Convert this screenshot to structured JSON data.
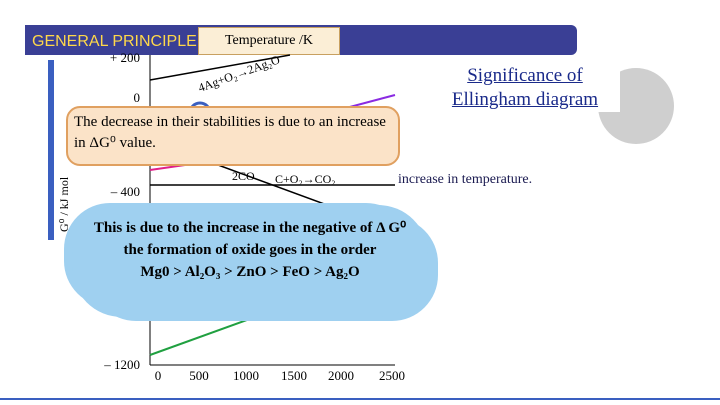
{
  "header": {
    "title": "GENERAL PRINCIPLE"
  },
  "diagram": {
    "x_axis_label": "Temperature /K",
    "y_axis_label": "G⁰ / kJ mol",
    "y_tick_labels": [
      "+ 200",
      "0",
      "– 400",
      "– 1200"
    ],
    "x_tick_labels": [
      "0",
      "500",
      "1000",
      "1500",
      "2000",
      "2500"
    ],
    "reaction_labels": [
      "4Ag+O₂→2Ag₂O",
      "C+O₂→CO₂",
      "2CO"
    ]
  },
  "callout_stability": "The decrease in their stabilities is due to an increase in ΔG⁰ value.",
  "callout_order": {
    "text": "This is due to the increase in the negative of Δ G⁰ the formation of oxide goes in the order",
    "order": "Mg0 > Al₂O₃ > ZnO > FeO > Ag₂O"
  },
  "significance": {
    "title": "Significance of Ellingham diagram",
    "text": "increase in temperature."
  }
}
